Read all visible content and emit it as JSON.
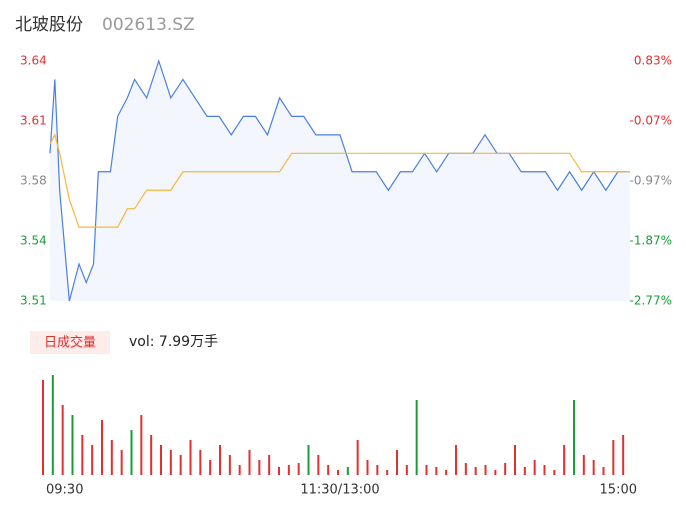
{
  "header": {
    "name": "北玻股份",
    "code": "002613.SZ"
  },
  "chart_data": [
    {
      "type": "line",
      "x": [
        0,
        2,
        4,
        8,
        12,
        15,
        18,
        20,
        25,
        28,
        32,
        35,
        40,
        45,
        50,
        55,
        60,
        65,
        70,
        75,
        80,
        85,
        90,
        95,
        100,
        105,
        110,
        115,
        120,
        125,
        130,
        135,
        140,
        145,
        150,
        155,
        160,
        165,
        170,
        175,
        180,
        185,
        190,
        195,
        200,
        205,
        210,
        215,
        220,
        225,
        230,
        235,
        240
      ],
      "series": [
        {
          "color": "#4a7fe0",
          "values": [
            3.59,
            3.63,
            3.57,
            3.51,
            3.53,
            3.52,
            3.53,
            3.58,
            3.58,
            3.61,
            3.62,
            3.63,
            3.62,
            3.64,
            3.62,
            3.63,
            3.62,
            3.61,
            3.61,
            3.6,
            3.61,
            3.61,
            3.6,
            3.62,
            3.61,
            3.61,
            3.6,
            3.6,
            3.6,
            3.58,
            3.58,
            3.58,
            3.57,
            3.58,
            3.58,
            3.59,
            3.58,
            3.59,
            3.59,
            3.59,
            3.6,
            3.59,
            3.59,
            3.58,
            3.58,
            3.58,
            3.57,
            3.58,
            3.57,
            3.58,
            3.57,
            3.58,
            3.58
          ]
        },
        {
          "color": "#f5b83d",
          "values": [
            3.595,
            3.6,
            3.59,
            3.565,
            3.55,
            3.55,
            3.55,
            3.55,
            3.55,
            3.55,
            3.56,
            3.56,
            3.57,
            3.57,
            3.57,
            3.58,
            3.58,
            3.58,
            3.58,
            3.58,
            3.58,
            3.58,
            3.58,
            3.58,
            3.59,
            3.59,
            3.59,
            3.59,
            3.59,
            3.59,
            3.59,
            3.59,
            3.59,
            3.59,
            3.59,
            3.59,
            3.59,
            3.59,
            3.59,
            3.59,
            3.59,
            3.59,
            3.59,
            3.59,
            3.59,
            3.59,
            3.59,
            3.59,
            3.58,
            3.58,
            3.58,
            3.58,
            3.58
          ]
        }
      ],
      "xlim": [
        0,
        240
      ],
      "xticks": [
        {
          "value": 0,
          "label": "09:30"
        },
        {
          "value": 120,
          "label": "11:30/13:00"
        },
        {
          "value": 240,
          "label": "15:00"
        }
      ],
      "ylim": [
        3.51,
        3.64
      ],
      "yticks": [
        {
          "value": 3.64,
          "label": "3.64"
        },
        {
          "value": 3.6075,
          "label": "3.61"
        },
        {
          "value": 3.575,
          "label": "3.58"
        },
        {
          "value": 3.5425,
          "label": "3.54"
        },
        {
          "value": 3.51,
          "label": "3.51"
        }
      ],
      "y2lim": [
        -2.77,
        0.83
      ],
      "y2ticks": [
        {
          "value": 0.83,
          "label": "0.83%"
        },
        {
          "value": -0.07,
          "label": "-0.07%"
        },
        {
          "value": -0.97,
          "label": "-0.97%"
        },
        {
          "value": -1.87,
          "label": "-1.87%"
        },
        {
          "value": -2.77,
          "label": "-2.77%"
        }
      ],
      "tick_colors": [
        "#e03131",
        "#e03131",
        "#888888",
        "#1a9c3a",
        "#1a9c3a"
      ],
      "area_color": "#f3f6fd"
    },
    {
      "type": "bar",
      "label": "日成交量",
      "vol_label": "vol: 7.99万手",
      "x": [
        0,
        4,
        8,
        12,
        16,
        20,
        24,
        28,
        32,
        36,
        40,
        44,
        48,
        52,
        56,
        60,
        64,
        68,
        72,
        76,
        80,
        84,
        88,
        92,
        96,
        100,
        104,
        108,
        112,
        116,
        120,
        124,
        128,
        132,
        136,
        140,
        144,
        148,
        152,
        156,
        160,
        164,
        168,
        172,
        176,
        180,
        184,
        188,
        192,
        196,
        200,
        204,
        208,
        212,
        216,
        220,
        224,
        228,
        232,
        236
      ],
      "values": [
        95,
        100,
        70,
        60,
        40,
        30,
        55,
        35,
        25,
        45,
        60,
        40,
        30,
        25,
        20,
        35,
        25,
        15,
        30,
        20,
        10,
        25,
        15,
        20,
        8,
        10,
        12,
        30,
        20,
        10,
        5,
        8,
        35,
        15,
        10,
        5,
        25,
        10,
        75,
        10,
        8,
        5,
        30,
        12,
        8,
        10,
        5,
        12,
        30,
        8,
        15,
        10,
        5,
        30,
        75,
        20,
        15,
        8,
        35,
        40
      ],
      "colors": [
        "#e03131",
        "#1a9c3a",
        "#e03131",
        "#1a9c3a",
        "#e03131",
        "#e03131",
        "#e03131",
        "#e03131",
        "#e03131",
        "#1a9c3a",
        "#e03131",
        "#e03131",
        "#e03131",
        "#e03131",
        "#e03131",
        "#e03131",
        "#e03131",
        "#e03131",
        "#e03131",
        "#e03131",
        "#e03131",
        "#e03131",
        "#e03131",
        "#e03131",
        "#e03131",
        "#e03131",
        "#e03131",
        "#1a9c3a",
        "#e03131",
        "#e03131",
        "#e03131",
        "#1a9c3a",
        "#e03131",
        "#e03131",
        "#e03131",
        "#e03131",
        "#e03131",
        "#e03131",
        "#1a9c3a",
        "#e03131",
        "#e03131",
        "#e03131",
        "#e03131",
        "#e03131",
        "#e03131",
        "#e03131",
        "#e03131",
        "#e03131",
        "#e03131",
        "#e03131",
        "#e03131",
        "#e03131",
        "#e03131",
        "#e03131",
        "#1a9c3a",
        "#e03131",
        "#e03131",
        "#e03131",
        "#e03131",
        "#e03131"
      ],
      "ylim": [
        0,
        100
      ]
    }
  ]
}
